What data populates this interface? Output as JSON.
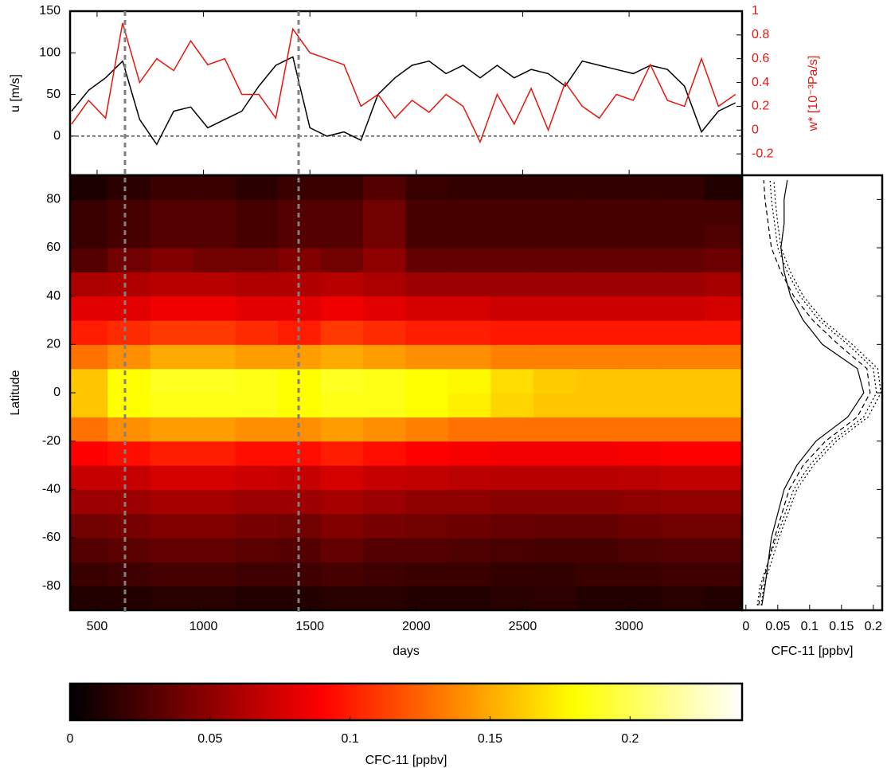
{
  "chart_data": [
    {
      "type": "line",
      "ylabel": "u [m/s]",
      "y2label": "w* [10⁻³Pa/s]",
      "ylim": [
        -47,
        150
      ],
      "yticks": [
        0,
        50,
        100,
        150
      ],
      "y2lim": [
        -0.38,
        1
      ],
      "y2ticks": [
        -0.2,
        0,
        0.2,
        0.4,
        0.6,
        0.8,
        1
      ],
      "zero_line": true,
      "x": [
        380,
        460,
        540,
        620,
        700,
        780,
        860,
        940,
        1020,
        1100,
        1180,
        1260,
        1340,
        1420,
        1500,
        1580,
        1660,
        1740,
        1820,
        1900,
        1980,
        2060,
        2140,
        2220,
        2300,
        2380,
        2460,
        2540,
        2620,
        2700,
        2780,
        2860,
        2940,
        3020,
        3100,
        3180,
        3260,
        3340,
        3420,
        3500
      ],
      "series": [
        {
          "color": "#000000",
          "values": [
            30,
            55,
            70,
            90,
            20,
            -10,
            30,
            35,
            10,
            20,
            30,
            60,
            85,
            95,
            10,
            0,
            5,
            -5,
            50,
            70,
            85,
            90,
            75,
            85,
            70,
            85,
            70,
            80,
            75,
            60,
            90,
            85,
            80,
            75,
            85,
            80,
            60,
            5,
            30,
            40
          ]
        },
        {
          "color": "#e8150d",
          "axis": "y2",
          "values": [
            0.05,
            0.25,
            0.1,
            0.9,
            0.4,
            0.6,
            0.5,
            0.75,
            0.55,
            0.6,
            0.3,
            0.3,
            0.1,
            0.85,
            0.65,
            0.6,
            0.55,
            0.2,
            0.3,
            0.1,
            0.25,
            0.15,
            0.3,
            0.2,
            -0.1,
            0.3,
            0.05,
            0.35,
            0.0,
            0.4,
            0.2,
            0.1,
            0.3,
            0.25,
            0.55,
            0.25,
            0.2,
            0.6,
            0.2,
            0.3
          ]
        }
      ]
    },
    {
      "type": "heatmap",
      "xlabel": "days",
      "ylabel": "Latitude",
      "xlim": [
        373,
        3531
      ],
      "xticks": [
        500,
        1000,
        1500,
        2000,
        2500,
        3000
      ],
      "ylim": [
        -90,
        90
      ],
      "yticks": [
        -80,
        -60,
        -40,
        -20,
        0,
        20,
        40,
        60,
        80
      ],
      "vlines": [
        631,
        1447
      ],
      "x": [
        450,
        650,
        850,
        1050,
        1250,
        1450,
        1650,
        1850,
        2050,
        2250,
        2450,
        2650,
        2850,
        3050,
        3250,
        3450
      ],
      "y": [
        -85,
        -75,
        -65,
        -55,
        -45,
        -35,
        -25,
        -15,
        -5,
        5,
        15,
        25,
        35,
        45,
        55,
        65,
        75,
        85
      ],
      "z": [
        [
          0.012,
          0.012,
          0.014,
          0.014,
          0.012,
          0.012,
          0.014,
          0.014,
          0.012,
          0.012,
          0.014,
          0.016,
          0.012,
          0.012,
          0.014,
          0.012
        ],
        [
          0.02,
          0.022,
          0.025,
          0.025,
          0.022,
          0.022,
          0.025,
          0.022,
          0.02,
          0.02,
          0.018,
          0.018,
          0.02,
          0.02,
          0.022,
          0.022
        ],
        [
          0.03,
          0.032,
          0.035,
          0.035,
          0.032,
          0.03,
          0.035,
          0.03,
          0.03,
          0.028,
          0.026,
          0.025,
          0.025,
          0.028,
          0.03,
          0.03
        ],
        [
          0.04,
          0.042,
          0.045,
          0.045,
          0.042,
          0.04,
          0.045,
          0.042,
          0.04,
          0.038,
          0.036,
          0.035,
          0.035,
          0.038,
          0.04,
          0.04
        ],
        [
          0.055,
          0.055,
          0.058,
          0.058,
          0.055,
          0.055,
          0.058,
          0.055,
          0.05,
          0.05,
          0.048,
          0.048,
          0.048,
          0.05,
          0.052,
          0.052
        ],
        [
          0.07,
          0.07,
          0.075,
          0.075,
          0.072,
          0.07,
          0.075,
          0.07,
          0.068,
          0.066,
          0.065,
          0.065,
          0.065,
          0.066,
          0.068,
          0.068
        ],
        [
          0.09,
          0.095,
          0.1,
          0.1,
          0.095,
          0.095,
          0.1,
          0.095,
          0.09,
          0.088,
          0.086,
          0.086,
          0.086,
          0.088,
          0.09,
          0.09
        ],
        [
          0.13,
          0.14,
          0.145,
          0.145,
          0.14,
          0.14,
          0.145,
          0.14,
          0.135,
          0.13,
          0.13,
          0.13,
          0.13,
          0.13,
          0.13,
          0.13
        ],
        [
          0.16,
          0.18,
          0.185,
          0.185,
          0.185,
          0.18,
          0.185,
          0.185,
          0.18,
          0.175,
          0.165,
          0.16,
          0.16,
          0.16,
          0.16,
          0.16
        ],
        [
          0.16,
          0.18,
          0.188,
          0.188,
          0.185,
          0.18,
          0.188,
          0.185,
          0.18,
          0.178,
          0.168,
          0.162,
          0.16,
          0.16,
          0.16,
          0.16
        ],
        [
          0.13,
          0.14,
          0.15,
          0.15,
          0.145,
          0.145,
          0.15,
          0.145,
          0.14,
          0.14,
          0.135,
          0.135,
          0.135,
          0.135,
          0.135,
          0.135
        ],
        [
          0.1,
          0.105,
          0.11,
          0.11,
          0.105,
          0.1,
          0.11,
          0.105,
          0.1,
          0.1,
          0.098,
          0.098,
          0.098,
          0.098,
          0.098,
          0.098
        ],
        [
          0.08,
          0.08,
          0.085,
          0.085,
          0.08,
          0.08,
          0.085,
          0.08,
          0.075,
          0.075,
          0.072,
          0.072,
          0.072,
          0.072,
          0.072,
          0.075
        ],
        [
          0.06,
          0.062,
          0.065,
          0.065,
          0.062,
          0.062,
          0.065,
          0.06,
          0.055,
          0.055,
          0.055,
          0.055,
          0.055,
          0.055,
          0.055,
          0.058
        ],
        [
          0.03,
          0.04,
          0.045,
          0.04,
          0.04,
          0.045,
          0.04,
          0.05,
          0.035,
          0.035,
          0.035,
          0.035,
          0.035,
          0.035,
          0.035,
          0.038
        ],
        [
          0.02,
          0.025,
          0.03,
          0.03,
          0.025,
          0.03,
          0.03,
          0.04,
          0.025,
          0.025,
          0.025,
          0.025,
          0.025,
          0.025,
          0.025,
          0.028
        ],
        [
          0.02,
          0.025,
          0.03,
          0.03,
          0.025,
          0.03,
          0.03,
          0.04,
          0.025,
          0.025,
          0.025,
          0.025,
          0.025,
          0.025,
          0.025,
          0.025
        ],
        [
          0.01,
          0.015,
          0.02,
          0.02,
          0.015,
          0.02,
          0.02,
          0.03,
          0.02,
          0.018,
          0.018,
          0.018,
          0.018,
          0.018,
          0.018,
          0.012
        ]
      ]
    },
    {
      "type": "profile",
      "xlabel": "CFC-11 [ppbv]",
      "xlim": [
        -0.006,
        0.214
      ],
      "xticks": [
        0,
        0.05,
        0.1,
        0.15,
        0.2
      ],
      "y": [
        -88,
        -80,
        -60,
        -40,
        -30,
        -20,
        -10,
        0,
        10,
        20,
        30,
        40,
        50,
        60,
        70,
        80,
        88
      ],
      "series": [
        {
          "color": "#000000",
          "style": "solid",
          "values": [
            0.025,
            0.03,
            0.04,
            0.06,
            0.08,
            0.11,
            0.16,
            0.185,
            0.175,
            0.12,
            0.09,
            0.07,
            0.06,
            0.055,
            0.06,
            0.06,
            0.065
          ]
        },
        {
          "color": "#000000",
          "style": "dashed",
          "values": [
            0.02,
            0.025,
            0.045,
            0.068,
            0.09,
            0.125,
            0.175,
            0.195,
            0.19,
            0.145,
            0.105,
            0.075,
            0.055,
            0.04,
            0.035,
            0.03,
            0.028
          ]
        },
        {
          "color": "#000000",
          "style": "dotted",
          "values": [
            0.018,
            0.022,
            0.048,
            0.075,
            0.1,
            0.135,
            0.185,
            0.205,
            0.2,
            0.16,
            0.115,
            0.085,
            0.065,
            0.05,
            0.045,
            0.04,
            0.038
          ]
        },
        {
          "color": "#000000",
          "style": "dotted",
          "values": [
            0.024,
            0.028,
            0.052,
            0.08,
            0.106,
            0.142,
            0.192,
            0.212,
            0.207,
            0.167,
            0.121,
            0.09,
            0.07,
            0.055,
            0.05,
            0.046,
            0.044
          ]
        }
      ]
    },
    {
      "type": "colorbar",
      "xlabel": "CFC-11 [ppbv]",
      "colormap": "hot",
      "xlim": [
        0,
        0.24
      ],
      "xticks": [
        0,
        0.05,
        0.1,
        0.15,
        0.2
      ]
    }
  ]
}
